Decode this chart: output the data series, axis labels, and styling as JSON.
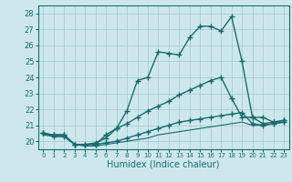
{
  "title": "",
  "xlabel": "Humidex (Indice chaleur)",
  "bg_color": "#cde8ec",
  "grid_color": "#aacdd4",
  "line_color": "#1a6b6b",
  "x_ticks": [
    0,
    1,
    2,
    3,
    4,
    5,
    6,
    7,
    8,
    9,
    10,
    11,
    12,
    13,
    14,
    15,
    16,
    17,
    18,
    19,
    20,
    21,
    22,
    23
  ],
  "ylim": [
    19.5,
    28.5
  ],
  "xlim": [
    -0.5,
    23.5
  ],
  "yticks": [
    20,
    21,
    22,
    23,
    24,
    25,
    26,
    27,
    28
  ],
  "series": [
    {
      "x": [
        0,
        1,
        2,
        3,
        4,
        5,
        6,
        7,
        8,
        9,
        10,
        11,
        12,
        13,
        14,
        15,
        16,
        17,
        18,
        19,
        20,
        21,
        22,
        23
      ],
      "y": [
        20.5,
        20.4,
        20.4,
        19.8,
        19.8,
        19.8,
        20.4,
        20.8,
        21.9,
        23.8,
        24.0,
        25.6,
        25.5,
        25.4,
        26.5,
        27.2,
        27.2,
        26.9,
        27.8,
        25.0,
        21.5,
        21.1,
        21.2,
        21.3
      ],
      "marker": "+",
      "markersize": 4,
      "linewidth": 1.0
    },
    {
      "x": [
        0,
        1,
        2,
        3,
        4,
        5,
        6,
        7,
        8,
        9,
        10,
        11,
        12,
        13,
        14,
        15,
        16,
        17,
        18,
        19,
        20,
        21,
        22,
        23
      ],
      "y": [
        20.5,
        20.4,
        20.4,
        19.8,
        19.8,
        19.9,
        20.2,
        20.8,
        21.1,
        21.5,
        21.9,
        22.2,
        22.5,
        22.9,
        23.2,
        23.5,
        23.8,
        24.0,
        22.7,
        21.5,
        21.5,
        21.5,
        21.2,
        21.3
      ],
      "marker": "+",
      "markersize": 4,
      "linewidth": 1.0
    },
    {
      "x": [
        0,
        1,
        2,
        3,
        4,
        5,
        6,
        7,
        8,
        9,
        10,
        11,
        12,
        13,
        14,
        15,
        16,
        17,
        18,
        19,
        20,
        21,
        22,
        23
      ],
      "y": [
        20.5,
        20.3,
        20.3,
        19.8,
        19.8,
        19.8,
        19.9,
        20.0,
        20.2,
        20.4,
        20.6,
        20.8,
        21.0,
        21.2,
        21.3,
        21.4,
        21.5,
        21.6,
        21.7,
        21.8,
        21.1,
        21.0,
        21.1,
        21.2
      ],
      "marker": "+",
      "markersize": 4,
      "linewidth": 1.0
    },
    {
      "x": [
        0,
        1,
        2,
        3,
        4,
        5,
        6,
        7,
        8,
        9,
        10,
        11,
        12,
        13,
        14,
        15,
        16,
        17,
        18,
        19,
        20,
        21,
        22,
        23
      ],
      "y": [
        20.4,
        20.3,
        20.3,
        19.8,
        19.7,
        19.7,
        19.8,
        19.9,
        20.0,
        20.1,
        20.2,
        20.4,
        20.5,
        20.6,
        20.7,
        20.8,
        20.9,
        21.0,
        21.1,
        21.2,
        21.0,
        21.0,
        21.1,
        21.2
      ],
      "marker": "",
      "markersize": 0,
      "linewidth": 0.8
    }
  ]
}
